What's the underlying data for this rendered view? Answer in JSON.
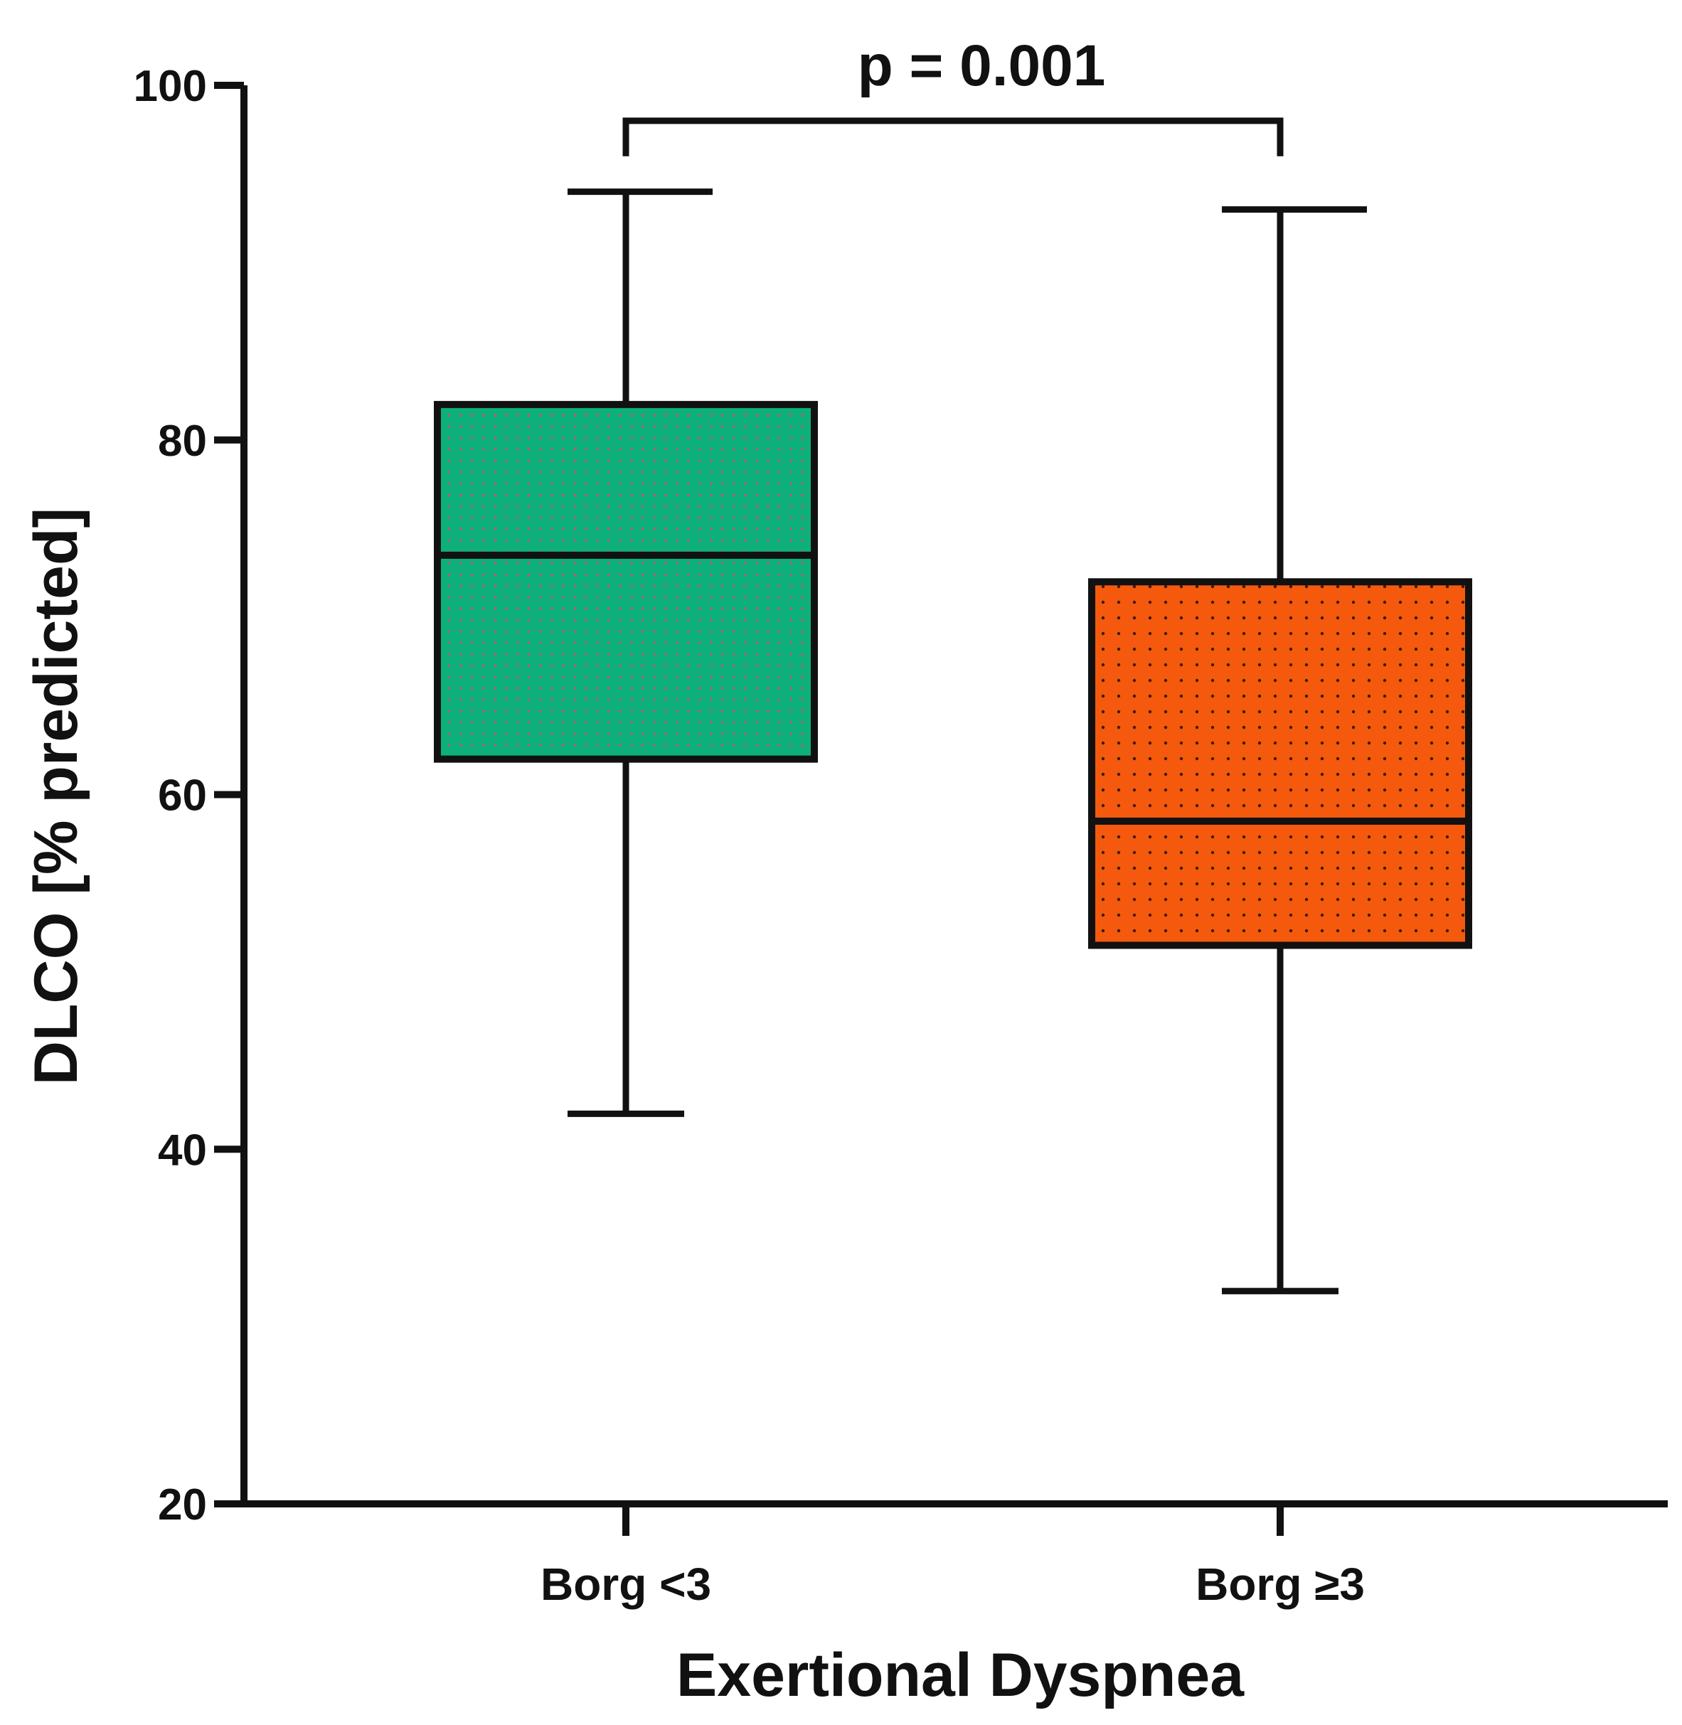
{
  "chart_data": {
    "type": "box",
    "title": "",
    "xlabel": "Exertional Dyspnea",
    "ylabel": "DLCO [% predicted]",
    "ylim": [
      20,
      100
    ],
    "yticks": [
      20,
      40,
      60,
      80,
      100
    ],
    "grid": false,
    "categories": [
      "Borg <3",
      "Borg ≥3"
    ],
    "series": [
      {
        "name": "Borg <3",
        "whisker_low": 42,
        "q1": 62,
        "median": 73.5,
        "q3": 82,
        "whisker_high": 94,
        "color": "#0db07a",
        "fill_pattern": "dotted"
      },
      {
        "name": "Borg ≥3",
        "whisker_low": 32,
        "q1": 51.5,
        "median": 58.5,
        "q3": 72,
        "whisker_high": 93,
        "color": "#f5590e",
        "fill_pattern": "dotted"
      }
    ],
    "annotations": [
      {
        "text": "p = 0.001",
        "between": [
          "Borg <3",
          "Borg ≥3"
        ],
        "bracket_value": 98,
        "bracket_drop_to": 96
      }
    ]
  }
}
